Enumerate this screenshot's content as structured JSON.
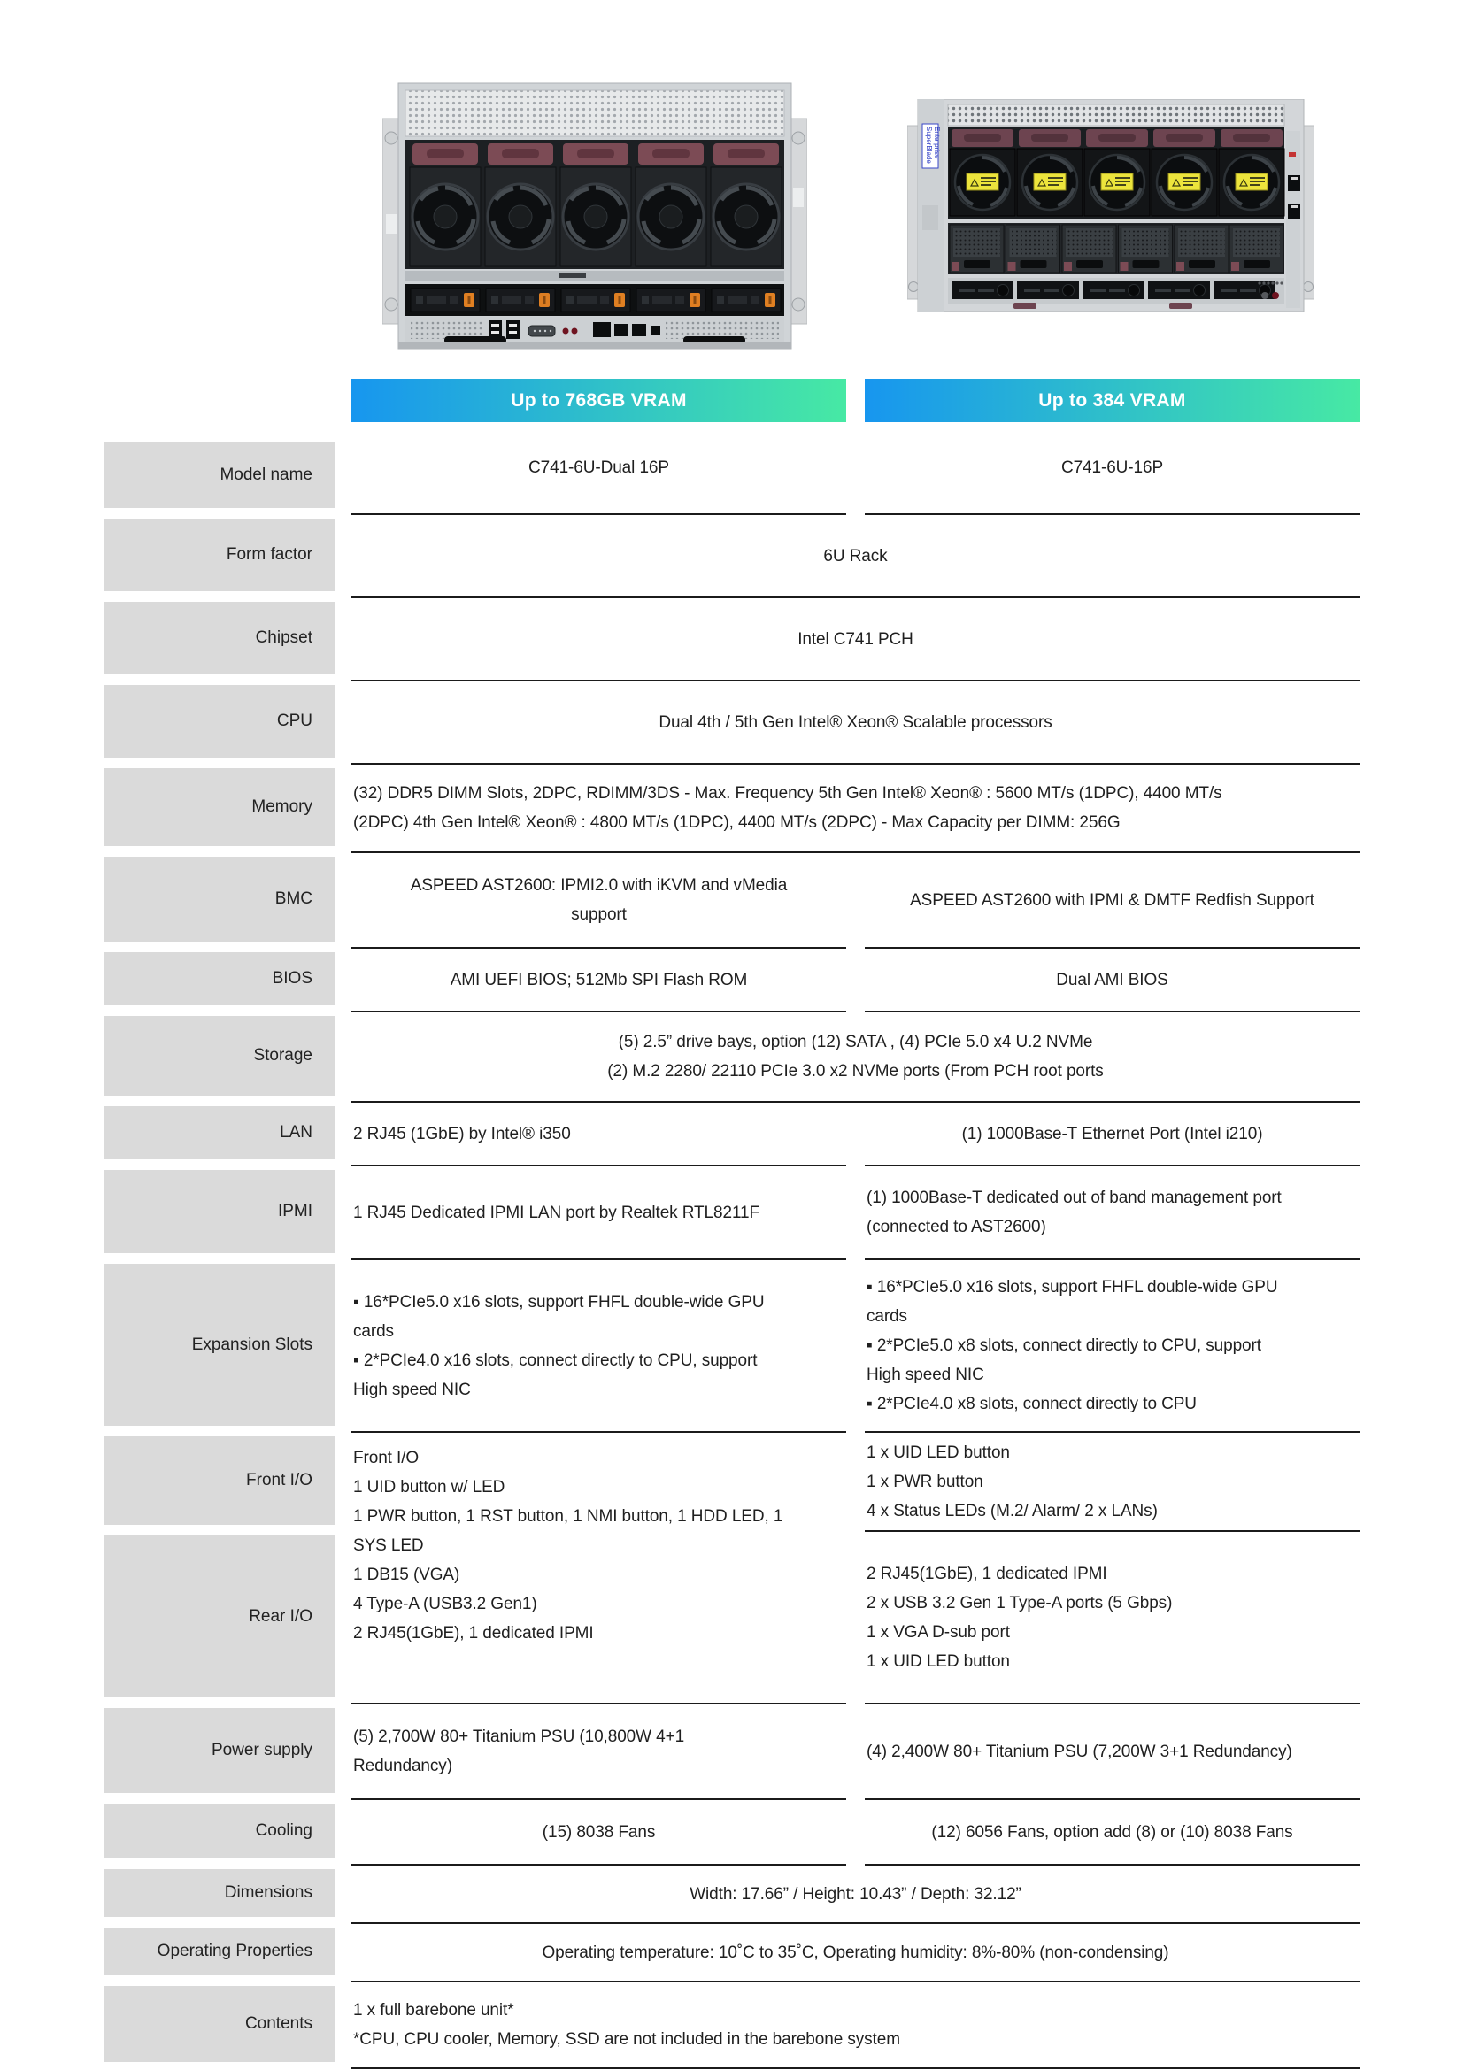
{
  "page": {
    "background": "#ffffff"
  },
  "colors": {
    "header_gradient_start": "#1796ef",
    "header_gradient_end": "#47e9a4",
    "label_box_bg": "#dadada",
    "rule_color": "#1b1b1b",
    "text_color": "#1f1f1f",
    "header_text": "#ffffff",
    "fan_handle_maroon": "#6d4450",
    "drive_latch_orange": "#df7f22",
    "warning_sticker_yellow": "#ece43c"
  },
  "images": {
    "right_server_badge_line1": "SuperBlade",
    "right_server_badge_line2": "Enterprise"
  },
  "table": {
    "headers": [
      {
        "label": "Up to 768GB VRAM"
      },
      {
        "label": "Up to 384 VRAM"
      }
    ],
    "rows": [
      {
        "label": "Model name",
        "left": [
          "C741-6U-Dual 16P"
        ],
        "right": [
          "C741-6U-16P"
        ]
      },
      {
        "label": "Form factor",
        "text": [
          "6U Rack"
        ]
      },
      {
        "label": "Chipset",
        "text": [
          "Intel C741 PCH"
        ]
      },
      {
        "label": "CPU",
        "text": [
          "Dual 4th / 5th Gen Intel® Xeon® Scalable processors"
        ]
      },
      {
        "label": "Memory",
        "text": [
          "(32) DDR5 DIMM Slots, 2DPC, RDIMM/3DS - Max. Frequency 5th Gen Intel® Xeon® : 5600 MT/s (1DPC), 4400 MT/s",
          "(2DPC) 4th Gen Intel® Xeon® : 4800 MT/s (1DPC), 4400 MT/s (2DPC) - Max Capacity per DIMM: 256G"
        ]
      },
      {
        "label": "BMC",
        "left": [
          "ASPEED AST2600: IPMI2.0 with iKVM and vMedia",
          "support"
        ],
        "right": [
          "ASPEED AST2600 with IPMI & DMTF Redfish Support"
        ]
      },
      {
        "label": "BIOS",
        "left": [
          "AMI UEFI BIOS; 512Mb SPI Flash ROM"
        ],
        "right": [
          "Dual AMI BIOS"
        ]
      },
      {
        "label": "Storage",
        "text": [
          "(5) 2.5” drive bays, option (12) SATA , (4) PCIe 5.0 x4 U.2 NVMe",
          "(2) M.2 2280/ 22110 PCIe 3.0 x2 NVMe ports (From PCH root ports"
        ]
      },
      {
        "label": "LAN",
        "left": [
          "2 RJ45 (1GbE) by Intel® i350"
        ],
        "right": [
          "(1) 1000Base-T Ethernet Port (Intel i210)"
        ]
      },
      {
        "label": "IPMI",
        "left": [
          "1 RJ45 Dedicated IPMI LAN port by Realtek RTL8211F"
        ],
        "right": [
          "(1) 1000Base-T dedicated out of band management port",
          "(connected to AST2600)"
        ]
      },
      {
        "label": "Expansion Slots",
        "left": [
          "▪ 16*PCIe5.0 x16 slots, support FHFL double-wide GPU",
          "cards",
          "▪ 2*PCIe4.0 x16 slots, connect directly to CPU, support",
          "High speed NIC"
        ],
        "right": [
          "▪ 16*PCIe5.0 x16 slots, support FHFL double-wide GPU",
          "cards",
          "▪ 2*PCIe5.0 x8 slots, connect directly to CPU, support",
          "High speed NIC",
          "▪ 2*PCIe4.0 x8 slots, connect directly to CPU"
        ]
      },
      {
        "labels": [
          "Front I/O",
          "Rear I/O"
        ],
        "left": [
          "Front I/O",
          "1 UID button w/ LED",
          "1 PWR button, 1 RST button, 1 NMI button, 1 HDD LED, 1",
          "SYS LED",
          "1 DB15 (VGA)",
          "4 Type-A (USB3.2 Gen1)",
          "2 RJ45(1GbE), 1 dedicated IPMI"
        ],
        "right_front": [
          "1 x UID LED button",
          "1 x PWR button",
          "4 x Status LEDs (M.2/ Alarm/ 2 x LANs)"
        ],
        "right_rear": [
          "2 RJ45(1GbE), 1 dedicated IPMI",
          "2 x USB 3.2 Gen 1 Type-A ports (5 Gbps)",
          "1 x VGA D-sub port",
          "1 x UID LED button"
        ]
      },
      {
        "label": "Power supply",
        "left": [
          "(5) 2,700W 80+ Titanium PSU (10,800W 4+1",
          "Redundancy)"
        ],
        "right": [
          "(4) 2,400W 80+ Titanium PSU (7,200W 3+1 Redundancy)"
        ]
      },
      {
        "label": "Cooling",
        "left": [
          "(15) 8038 Fans"
        ],
        "right": [
          "(12) 6056 Fans, option add (8) or (10) 8038 Fans"
        ]
      },
      {
        "label": "Dimensions",
        "text": [
          "Width: 17.66” / Height: 10.43” / Depth: 32.12”"
        ]
      },
      {
        "label": "Operating Properties",
        "text": [
          "Operating temperature: 10˚C to 35˚C, Operating humidity: 8%-80% (non-condensing)"
        ]
      },
      {
        "label": "Contents",
        "text": [
          "1 x full barebone unit*",
          "*CPU, CPU cooler, Memory, SSD are not included in the barebone system"
        ]
      }
    ]
  }
}
